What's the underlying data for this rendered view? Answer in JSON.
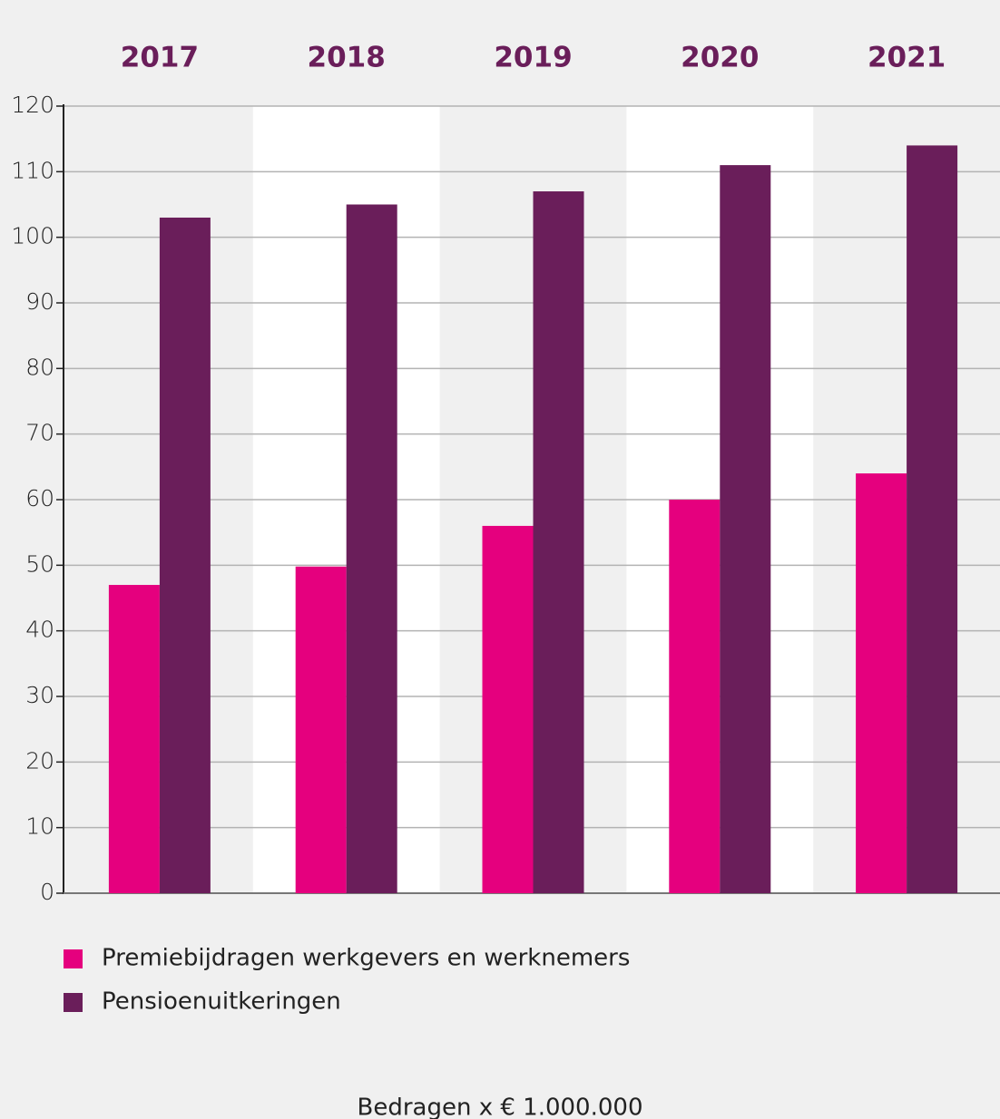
{
  "chart_data": {
    "type": "bar",
    "note": "Bedragen x € 1.000.000",
    "categories": [
      "2017",
      "2018",
      "2019",
      "2020",
      "2021"
    ],
    "series": [
      {
        "name": "Premiebijdragen werkgevers en werknemers",
        "color": "#e5007e",
        "values": [
          47,
          49.8,
          56,
          60,
          64
        ]
      },
      {
        "name": "Pensioenuitkeringen",
        "color": "#6a1e5a",
        "values": [
          103,
          105,
          107,
          111,
          114
        ]
      }
    ],
    "ylim": [
      0,
      120
    ],
    "yticks": [
      0,
      10,
      20,
      30,
      40,
      50,
      60,
      70,
      80,
      90,
      100,
      110,
      120
    ],
    "grid": true
  }
}
